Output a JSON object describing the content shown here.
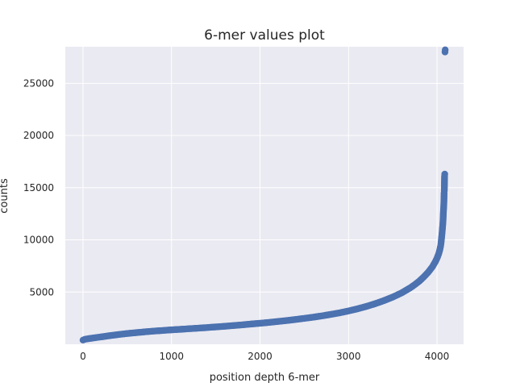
{
  "chart_data": {
    "type": "scatter",
    "title": "6-mer values plot",
    "xlabel": "position depth 6-mer",
    "ylabel": "counts",
    "xlim": [
      -200,
      4300
    ],
    "ylim": [
      0,
      28500
    ],
    "xticks": [
      0,
      1000,
      2000,
      3000,
      4000
    ],
    "yticks": [
      5000,
      10000,
      15000,
      20000,
      25000
    ],
    "grid": true,
    "background": "#eaeaf2",
    "grid_color": "#ffffff",
    "marker_color": "#4c72b0",
    "series": [
      {
        "points": [
          [
            0,
            400
          ],
          [
            20,
            470
          ],
          [
            50,
            520
          ],
          [
            100,
            580
          ],
          [
            150,
            640
          ],
          [
            200,
            700
          ],
          [
            300,
            820
          ],
          [
            400,
            930
          ],
          [
            500,
            1030
          ],
          [
            600,
            1110
          ],
          [
            700,
            1190
          ],
          [
            800,
            1260
          ],
          [
            900,
            1320
          ],
          [
            1000,
            1380
          ],
          [
            1100,
            1430
          ],
          [
            1200,
            1490
          ],
          [
            1300,
            1540
          ],
          [
            1400,
            1600
          ],
          [
            1500,
            1660
          ],
          [
            1600,
            1720
          ],
          [
            1700,
            1790
          ],
          [
            1800,
            1860
          ],
          [
            1900,
            1940
          ],
          [
            2000,
            2010
          ],
          [
            2100,
            2090
          ],
          [
            2200,
            2180
          ],
          [
            2300,
            2270
          ],
          [
            2400,
            2370
          ],
          [
            2500,
            2480
          ],
          [
            2600,
            2590
          ],
          [
            2700,
            2720
          ],
          [
            2800,
            2860
          ],
          [
            2900,
            3010
          ],
          [
            3000,
            3190
          ],
          [
            3100,
            3390
          ],
          [
            3200,
            3620
          ],
          [
            3300,
            3880
          ],
          [
            3400,
            4180
          ],
          [
            3500,
            4520
          ],
          [
            3600,
            4920
          ],
          [
            3700,
            5420
          ],
          [
            3750,
            5720
          ],
          [
            3800,
            6050
          ],
          [
            3850,
            6450
          ],
          [
            3900,
            6900
          ],
          [
            3950,
            7450
          ],
          [
            3980,
            7900
          ],
          [
            4000,
            8250
          ],
          [
            4020,
            8700
          ],
          [
            4030,
            9000
          ],
          [
            4040,
            9400
          ],
          [
            4045,
            9700
          ],
          [
            4050,
            10100
          ],
          [
            4055,
            10500
          ],
          [
            4060,
            11000
          ],
          [
            4065,
            11500
          ],
          [
            4068,
            11900
          ],
          [
            4070,
            12300
          ],
          [
            4072,
            12700
          ],
          [
            4075,
            13100
          ],
          [
            4078,
            13700
          ],
          [
            4080,
            14500
          ],
          [
            4082,
            14700
          ],
          [
            4085,
            16100
          ],
          [
            4087,
            16300
          ],
          [
            4090,
            28000
          ],
          [
            4092,
            28200
          ]
        ]
      }
    ]
  }
}
